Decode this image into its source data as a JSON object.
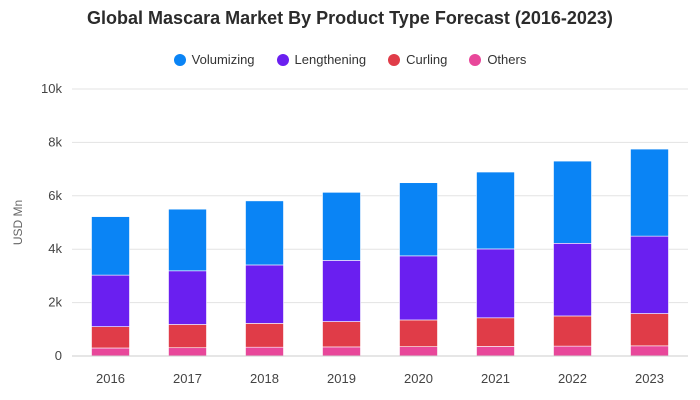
{
  "chart_data": {
    "type": "bar",
    "stacked": true,
    "title": "Global Mascara Market By Product Type Forecast (2016-2023)",
    "xlabel": "",
    "ylabel": "USD Mn",
    "ylim": [
      0,
      10000
    ],
    "y_ticks": [
      "0",
      "2k",
      "4k",
      "6k",
      "8k",
      "10k"
    ],
    "grid": true,
    "legend_position": "top-center",
    "categories": [
      "2016",
      "2017",
      "2018",
      "2019",
      "2020",
      "2021",
      "2022",
      "2023"
    ],
    "series": [
      {
        "name": "Others",
        "color": "#e8479a",
        "values": [
          300,
          310,
          330,
          340,
          350,
          360,
          370,
          380
        ]
      },
      {
        "name": "Curling",
        "color": "#e03c48",
        "values": [
          800,
          870,
          890,
          950,
          1000,
          1070,
          1130,
          1210
        ]
      },
      {
        "name": "Lengthening",
        "color": "#6a1ff0",
        "values": [
          1930,
          2010,
          2190,
          2290,
          2400,
          2580,
          2720,
          2900
        ]
      },
      {
        "name": "Volumizing",
        "color": "#0a84f5",
        "values": [
          2190,
          2310,
          2400,
          2550,
          2740,
          2880,
          3080,
          3260
        ]
      }
    ]
  },
  "legend": [
    {
      "label": "Volumizing",
      "color": "#0a84f5"
    },
    {
      "label": "Lengthening",
      "color": "#6a1ff0"
    },
    {
      "label": "Curling",
      "color": "#e03c48"
    },
    {
      "label": "Others",
      "color": "#e8479a"
    }
  ]
}
